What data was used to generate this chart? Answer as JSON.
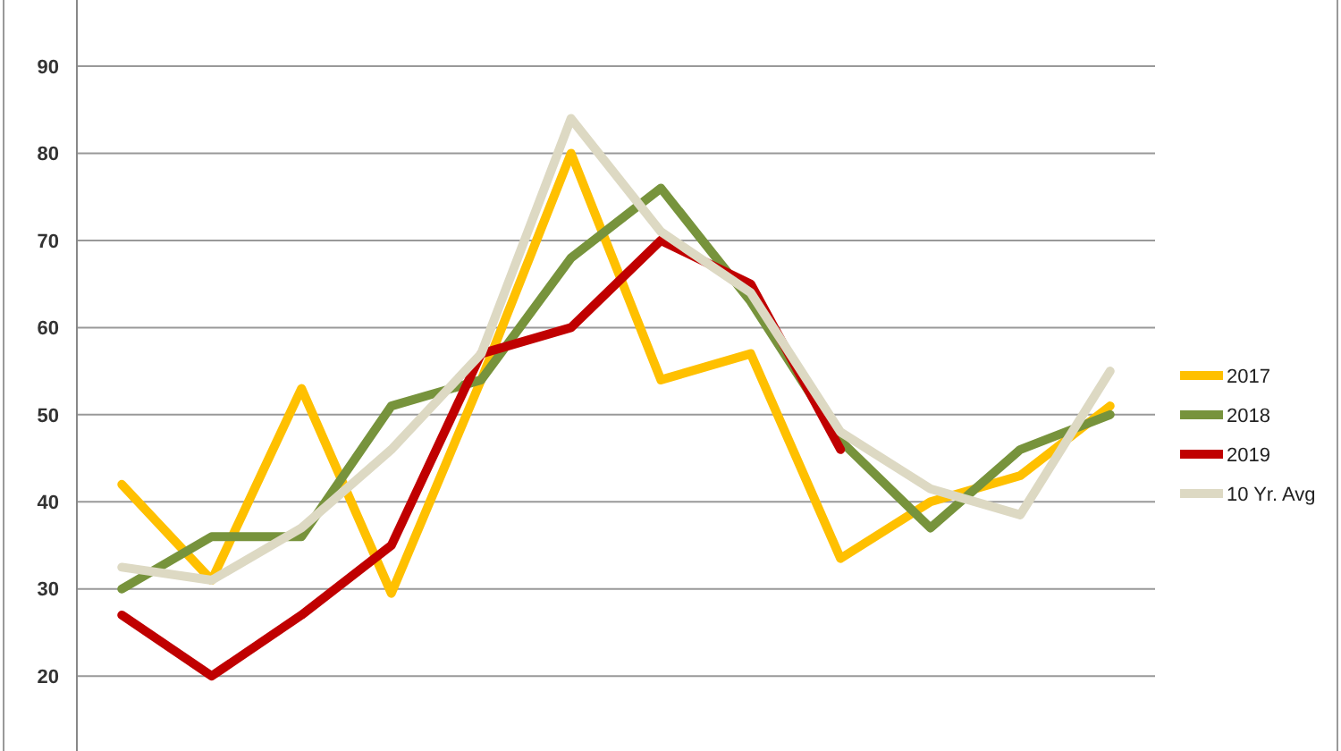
{
  "chart_data": {
    "type": "line",
    "categories": [
      null,
      null,
      null,
      null,
      null,
      null,
      null,
      null,
      null,
      null,
      null,
      null
    ],
    "series": [
      {
        "name": "2017",
        "color": "#ffc000",
        "values": [
          42,
          31,
          53,
          29.5,
          54,
          80,
          54,
          57,
          33.5,
          40,
          43,
          51
        ]
      },
      {
        "name": "2018",
        "color": "#77933c",
        "values": [
          30,
          36,
          36,
          51,
          54,
          68,
          76,
          63,
          47,
          37,
          46,
          50
        ]
      },
      {
        "name": "2019",
        "color": "#c00000",
        "values": [
          27,
          20,
          27,
          35,
          57,
          60,
          70,
          65,
          46,
          null,
          null,
          null
        ]
      },
      {
        "name": "10 Yr. Avg",
        "color": "#ddd9c3",
        "values": [
          32.5,
          31,
          37,
          46,
          57,
          84,
          71,
          64,
          48,
          41.5,
          38.5,
          55
        ]
      }
    ],
    "ylim": [
      11.4,
      97.6
    ],
    "yticks": [
      20,
      30,
      40,
      50,
      60,
      70,
      80,
      90
    ],
    "grid": "y",
    "legend": "right",
    "line_style": "solid"
  }
}
